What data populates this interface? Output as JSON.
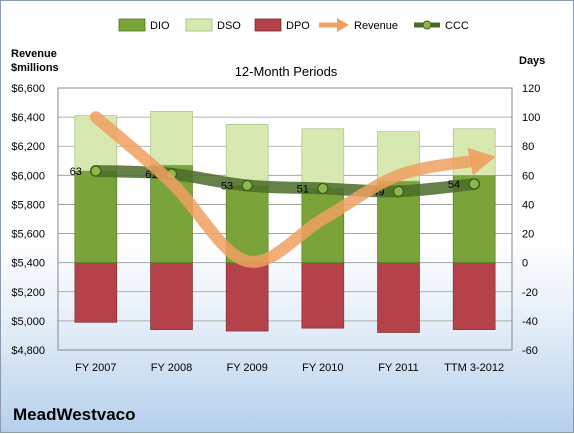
{
  "chart_data": {
    "type": "bar",
    "title": "12-Month Periods",
    "company": "MeadWestvaco",
    "left_axis_label": [
      "Revenue",
      "$millions"
    ],
    "right_axis_label": "Days",
    "categories": [
      "FY 2007",
      "FY 2008",
      "FY 2009",
      "FY 2010",
      "FY 2011",
      "TTM 3-2012"
    ],
    "left_axis": {
      "min": 4800,
      "max": 6600,
      "step": 200,
      "tick_labels": [
        "$4,800",
        "$5,000",
        "$5,200",
        "$5,400",
        "$5,600",
        "$5,800",
        "$6,000",
        "$6,200",
        "$6,400",
        "$6,600"
      ]
    },
    "right_axis": {
      "min": -60,
      "max": 120,
      "step": 20,
      "tick_labels": [
        "-60",
        "-40",
        "-20",
        "0",
        "20",
        "40",
        "60",
        "80",
        "100",
        "120"
      ]
    },
    "grid": true,
    "legend_position": "top",
    "series": [
      {
        "name": "DIO",
        "axis": "days",
        "kind": "stacked-bar",
        "color": "#7aa43a",
        "values": [
          63,
          67,
          53,
          51,
          56,
          60
        ]
      },
      {
        "name": "DSO",
        "axis": "days",
        "kind": "stacked-bar",
        "color": "#d7e9b0",
        "values": [
          38,
          37,
          42,
          41,
          34,
          32
        ]
      },
      {
        "name": "DPO",
        "axis": "days",
        "kind": "stacked-bar-negative",
        "color": "#b5424a",
        "values": [
          -41,
          -46,
          -47,
          -45,
          -48,
          -46
        ]
      },
      {
        "name": "Revenue",
        "axis": "revenue",
        "kind": "line",
        "color": "#f0a060",
        "values": [
          6400,
          5950,
          5410,
          5700,
          6000,
          6100
        ]
      },
      {
        "name": "CCC",
        "axis": "days",
        "kind": "line",
        "color": "#4a6b28",
        "values": [
          63,
          61,
          53,
          51,
          49,
          54
        ],
        "labels": [
          "63",
          "61",
          "53",
          "51",
          "49",
          "54"
        ]
      }
    ]
  }
}
